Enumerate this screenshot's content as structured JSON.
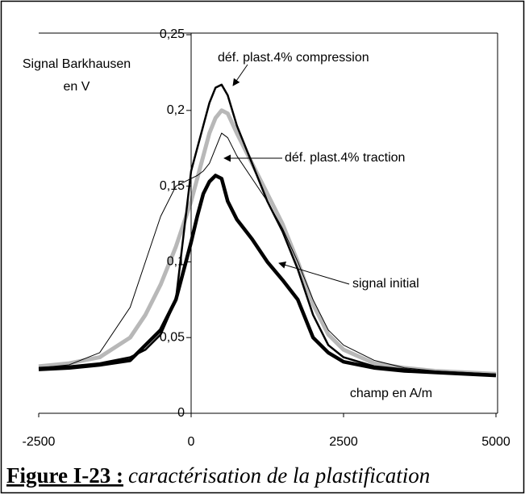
{
  "chart_data": {
    "type": "line",
    "ylabel": [
      "Signal Barkhausen",
      "en V"
    ],
    "xlabel": "champ en A/m",
    "figure_label": "Figure I-23 :",
    "caption": "caractérisation de la plastification",
    "x": [
      -2500,
      -2000,
      -1500,
      -1000,
      -750,
      -500,
      -250,
      0,
      100,
      200,
      300,
      400,
      500,
      600,
      750,
      1000,
      1250,
      1500,
      1750,
      2000,
      2250,
      2500,
      3000,
      3500,
      4000,
      5000
    ],
    "series": [
      {
        "color": "#b8b8b8",
        "values": [
          0.031,
          0.033,
          0.037,
          0.05,
          0.065,
          0.085,
          0.11,
          0.14,
          0.155,
          0.17,
          0.185,
          0.195,
          0.2,
          0.198,
          0.185,
          0.165,
          0.145,
          0.125,
          0.1,
          0.072,
          0.052,
          0.042,
          0.033,
          0.03,
          0.028,
          0.026
        ]
      },
      {
        "name": "déf. plast.4% traction",
        "color": "#000000",
        "values": [
          0.03,
          0.032,
          0.04,
          0.07,
          0.1,
          0.13,
          0.15,
          0.155,
          0.157,
          0.16,
          0.165,
          0.175,
          0.185,
          0.182,
          0.17,
          0.155,
          0.14,
          0.122,
          0.1,
          0.075,
          0.055,
          0.045,
          0.035,
          0.03,
          0.028,
          0.026
        ]
      },
      {
        "name": "déf. plast.4% compression",
        "color": "#000000",
        "values": [
          0.03,
          0.031,
          0.033,
          0.037,
          0.042,
          0.052,
          0.075,
          0.16,
          0.175,
          0.19,
          0.205,
          0.215,
          0.217,
          0.21,
          0.19,
          0.165,
          0.14,
          0.12,
          0.095,
          0.065,
          0.045,
          0.037,
          0.031,
          0.029,
          0.027,
          0.025
        ]
      },
      {
        "name": "signal initial",
        "color": "#000000",
        "values": [
          0.029,
          0.03,
          0.032,
          0.035,
          0.045,
          0.055,
          0.075,
          0.113,
          0.13,
          0.145,
          0.153,
          0.157,
          0.155,
          0.14,
          0.128,
          0.115,
          0.1,
          0.088,
          0.075,
          0.05,
          0.04,
          0.034,
          0.03,
          0.028,
          0.027,
          0.025
        ]
      }
    ],
    "xlim": [
      -2500,
      5000
    ],
    "xticks": [
      -2500,
      0,
      2500,
      5000
    ],
    "ylim": [
      0,
      0.25
    ],
    "yticks": [
      0,
      {
        "value": 0.05,
        "label": "0,05"
      },
      {
        "value": 0.1,
        "label": "0,1"
      },
      {
        "value": 0.15,
        "label": "0,15"
      },
      {
        "value": 0.2,
        "label": "0,2"
      },
      {
        "value": 0.25,
        "label": "0,25"
      }
    ]
  }
}
